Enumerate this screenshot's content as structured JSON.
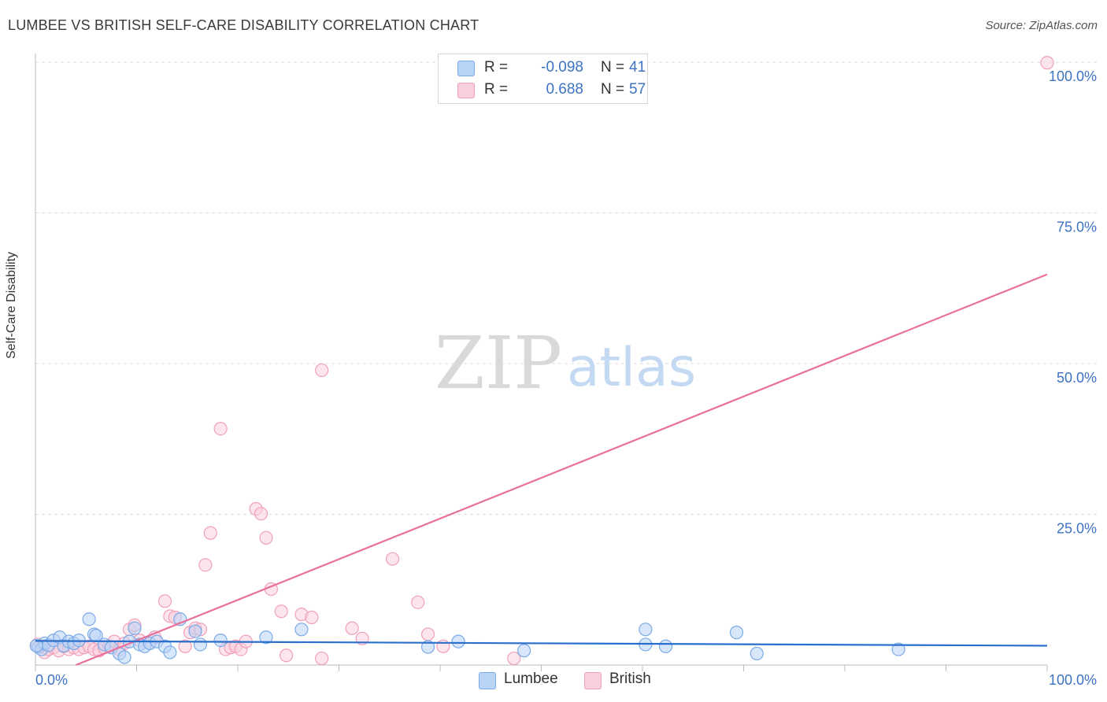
{
  "title": "LUMBEE VS BRITISH SELF-CARE DISABILITY CORRELATION CHART",
  "source": "Source: ZipAtlas.com",
  "watermark": {
    "zip": "ZIP",
    "atlas": "atlas"
  },
  "colors": {
    "lumbee": "#7aaae8",
    "lumbee_fill": "#b9d3f5",
    "lumbee_line": "#2b6fcc",
    "british": "#f0a0ba",
    "british_fill": "#f9cfdc",
    "british_line": "#e8709a",
    "tick_label": "#3d73c4",
    "grid": "#dddddd"
  },
  "legend": {
    "rows": [
      {
        "series": "Lumbee",
        "r_label": "R =",
        "r_value": "-0.098",
        "n_label": "N =",
        "n_value": "41"
      },
      {
        "series": "British",
        "r_label": "R =",
        "r_value": "0.688",
        "n_label": "N =",
        "n_value": "57"
      }
    ]
  },
  "bottom_legend": [
    {
      "label": "Lumbee"
    },
    {
      "label": "British"
    }
  ],
  "chart_data": {
    "type": "scatter",
    "title": "LUMBEE VS BRITISH SELF-CARE DISABILITY CORRELATION CHART",
    "xlabel": "",
    "ylabel": "Self-Care Disability",
    "xlim": [
      0,
      100
    ],
    "ylim": [
      0,
      100
    ],
    "x_tick_labels": [
      "0.0%",
      "100.0%"
    ],
    "y_tick_labels": [
      {
        "value": 25,
        "label": "25.0%"
      },
      {
        "value": 50,
        "label": "50.0%"
      },
      {
        "value": 75,
        "label": "75.0%"
      },
      {
        "value": 100,
        "label": "100.0%"
      }
    ],
    "grid": true,
    "series": [
      {
        "name": "Lumbee",
        "trend": {
          "x": [
            0,
            100
          ],
          "y": [
            4.0,
            3.2
          ]
        },
        "points": [
          [
            0.3,
            3.0
          ],
          [
            0.6,
            2.6
          ],
          [
            0.9,
            3.6
          ],
          [
            1.3,
            3.3
          ],
          [
            1.8,
            4.1
          ],
          [
            2.4,
            4.6
          ],
          [
            2.8,
            3.2
          ],
          [
            3.3,
            3.9
          ],
          [
            3.8,
            3.6
          ],
          [
            4.3,
            4.1
          ],
          [
            5.3,
            7.6
          ],
          [
            5.8,
            5.1
          ],
          [
            6.0,
            4.9
          ],
          [
            6.8,
            3.4
          ],
          [
            7.5,
            2.9
          ],
          [
            8.3,
            1.9
          ],
          [
            8.8,
            1.3
          ],
          [
            9.3,
            3.9
          ],
          [
            9.8,
            6.1
          ],
          [
            10.3,
            3.4
          ],
          [
            10.8,
            3.1
          ],
          [
            11.3,
            3.6
          ],
          [
            12.0,
            3.9
          ],
          [
            12.8,
            3.1
          ],
          [
            13.3,
            2.1
          ],
          [
            14.3,
            7.6
          ],
          [
            15.8,
            5.6
          ],
          [
            16.3,
            3.4
          ],
          [
            18.3,
            4.1
          ],
          [
            22.8,
            4.6
          ],
          [
            26.3,
            5.9
          ],
          [
            38.8,
            3.0
          ],
          [
            41.8,
            3.9
          ],
          [
            48.3,
            2.4
          ],
          [
            60.3,
            5.9
          ],
          [
            60.3,
            3.4
          ],
          [
            62.3,
            3.1
          ],
          [
            69.3,
            5.4
          ],
          [
            71.3,
            1.9
          ],
          [
            85.3,
            2.6
          ],
          [
            0.1,
            3.2
          ]
        ]
      },
      {
        "name": "British",
        "trend": {
          "x": [
            4,
            100
          ],
          "y": [
            0,
            64.8
          ]
        },
        "points": [
          [
            0.2,
            3.4
          ],
          [
            0.6,
            3.1
          ],
          [
            0.9,
            2.1
          ],
          [
            1.3,
            2.6
          ],
          [
            1.8,
            2.9
          ],
          [
            2.3,
            2.4
          ],
          [
            2.8,
            3.1
          ],
          [
            3.3,
            2.6
          ],
          [
            3.8,
            2.9
          ],
          [
            4.3,
            2.6
          ],
          [
            4.8,
            2.9
          ],
          [
            5.3,
            3.1
          ],
          [
            5.8,
            2.6
          ],
          [
            6.3,
            2.4
          ],
          [
            6.8,
            2.9
          ],
          [
            7.3,
            3.1
          ],
          [
            7.8,
            3.9
          ],
          [
            8.3,
            2.6
          ],
          [
            8.8,
            3.6
          ],
          [
            9.3,
            5.9
          ],
          [
            9.8,
            6.6
          ],
          [
            10.3,
            4.1
          ],
          [
            11.3,
            3.6
          ],
          [
            11.8,
            4.6
          ],
          [
            12.8,
            10.6
          ],
          [
            13.3,
            8.1
          ],
          [
            13.8,
            7.9
          ],
          [
            14.8,
            3.1
          ],
          [
            15.3,
            5.4
          ],
          [
            15.8,
            6.1
          ],
          [
            16.3,
            5.9
          ],
          [
            16.8,
            16.6
          ],
          [
            17.3,
            21.9
          ],
          [
            18.3,
            39.2
          ],
          [
            18.8,
            2.6
          ],
          [
            19.3,
            2.9
          ],
          [
            19.8,
            3.1
          ],
          [
            20.3,
            2.6
          ],
          [
            20.8,
            3.9
          ],
          [
            21.8,
            25.9
          ],
          [
            22.3,
            25.1
          ],
          [
            22.8,
            21.1
          ],
          [
            23.3,
            12.6
          ],
          [
            24.3,
            8.9
          ],
          [
            24.8,
            1.6
          ],
          [
            26.3,
            8.4
          ],
          [
            27.3,
            7.9
          ],
          [
            28.3,
            48.9
          ],
          [
            28.3,
            1.1
          ],
          [
            31.3,
            6.1
          ],
          [
            32.3,
            4.4
          ],
          [
            35.3,
            17.6
          ],
          [
            37.8,
            10.4
          ],
          [
            38.8,
            5.1
          ],
          [
            40.3,
            3.1
          ],
          [
            47.3,
            1.1
          ],
          [
            100.0,
            99.9
          ]
        ]
      }
    ]
  }
}
